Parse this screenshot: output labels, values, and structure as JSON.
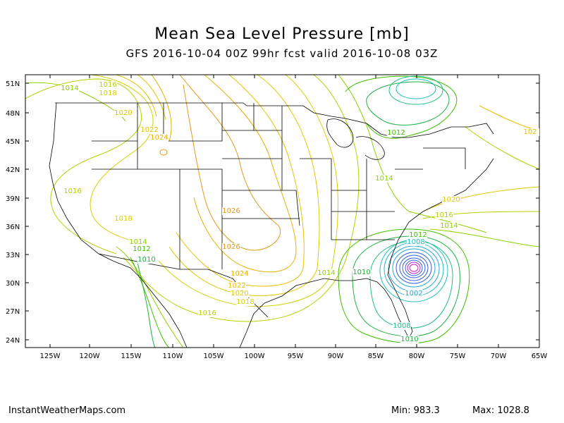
{
  "title": "Mean Sea Level Pressure [mb]",
  "subtitle": "GFS 2016-10-04 00Z 99hr fcst valid 2016-10-08 03Z",
  "footer": {
    "site": "InstantWeatherMaps.com",
    "min": "Min:  983.3",
    "max": "Max:  1028.8"
  },
  "colors": {
    "border": "#000000",
    "state_lines": "#000000",
    "high_1028": "#d4a017",
    "p1026": "#e09a1a",
    "p1024": "#e8b000",
    "p1022": "#e8c000",
    "p1020": "#e0c800",
    "p1018": "#d8d000",
    "p1016": "#b8d000",
    "p1014": "#90d000",
    "p1012": "#40c000",
    "p1010": "#20b040",
    "p1008": "#20c080",
    "p1006": "#20c0c0",
    "p1004": "#20b8d0",
    "p1002": "#20a8d8",
    "p_low": "#3060e0",
    "p_center": "#c020c0"
  },
  "axes": {
    "lat_labels": [
      "51N",
      "48N",
      "45N",
      "42N",
      "39N",
      "36N",
      "33N",
      "30N",
      "27N",
      "24N"
    ],
    "lon_labels": [
      "125W",
      "120W",
      "115W",
      "110W",
      "105W",
      "100W",
      "95W",
      "90W",
      "85W",
      "80W",
      "75W",
      "70W",
      "65W"
    ]
  },
  "contour_labels": [
    {
      "text": "1014",
      "color": "p1014"
    },
    {
      "text": "1016",
      "color": "p1016"
    },
    {
      "text": "1018",
      "color": "p1018"
    },
    {
      "text": "1020",
      "color": "p1020"
    },
    {
      "text": "1022",
      "color": "p1022"
    },
    {
      "text": "1024",
      "color": "p1024"
    },
    {
      "text": "1016",
      "color": "p1016"
    },
    {
      "text": "1018",
      "color": "p1018"
    },
    {
      "text": "1026",
      "color": "p1026"
    },
    {
      "text": "1026",
      "color": "p1026"
    },
    {
      "text": "1024",
      "color": "p1024"
    },
    {
      "text": "1022",
      "color": "p1022"
    },
    {
      "text": "1020",
      "color": "p1020"
    },
    {
      "text": "1018",
      "color": "p1018"
    },
    {
      "text": "1016",
      "color": "p1016"
    },
    {
      "text": "1014",
      "color": "p1014"
    },
    {
      "text": "1012",
      "color": "p1012"
    },
    {
      "text": "1010",
      "color": "p1010"
    },
    {
      "text": "1012",
      "color": "p1012"
    },
    {
      "text": "1014",
      "color": "p1014"
    },
    {
      "text": "1014",
      "color": "p1014"
    },
    {
      "text": "1010",
      "color": "p1010"
    },
    {
      "text": "1012",
      "color": "p1012"
    },
    {
      "text": "1008",
      "color": "p1006"
    },
    {
      "text": "1002",
      "color": "p1002"
    },
    {
      "text": "1008",
      "color": "p1008"
    },
    {
      "text": "1010",
      "color": "p1010"
    },
    {
      "text": "1020",
      "color": "p1020"
    },
    {
      "text": "1016",
      "color": "p1016"
    },
    {
      "text": "1014",
      "color": "p1014"
    },
    {
      "text": "102",
      "color": "p1022"
    }
  ]
}
